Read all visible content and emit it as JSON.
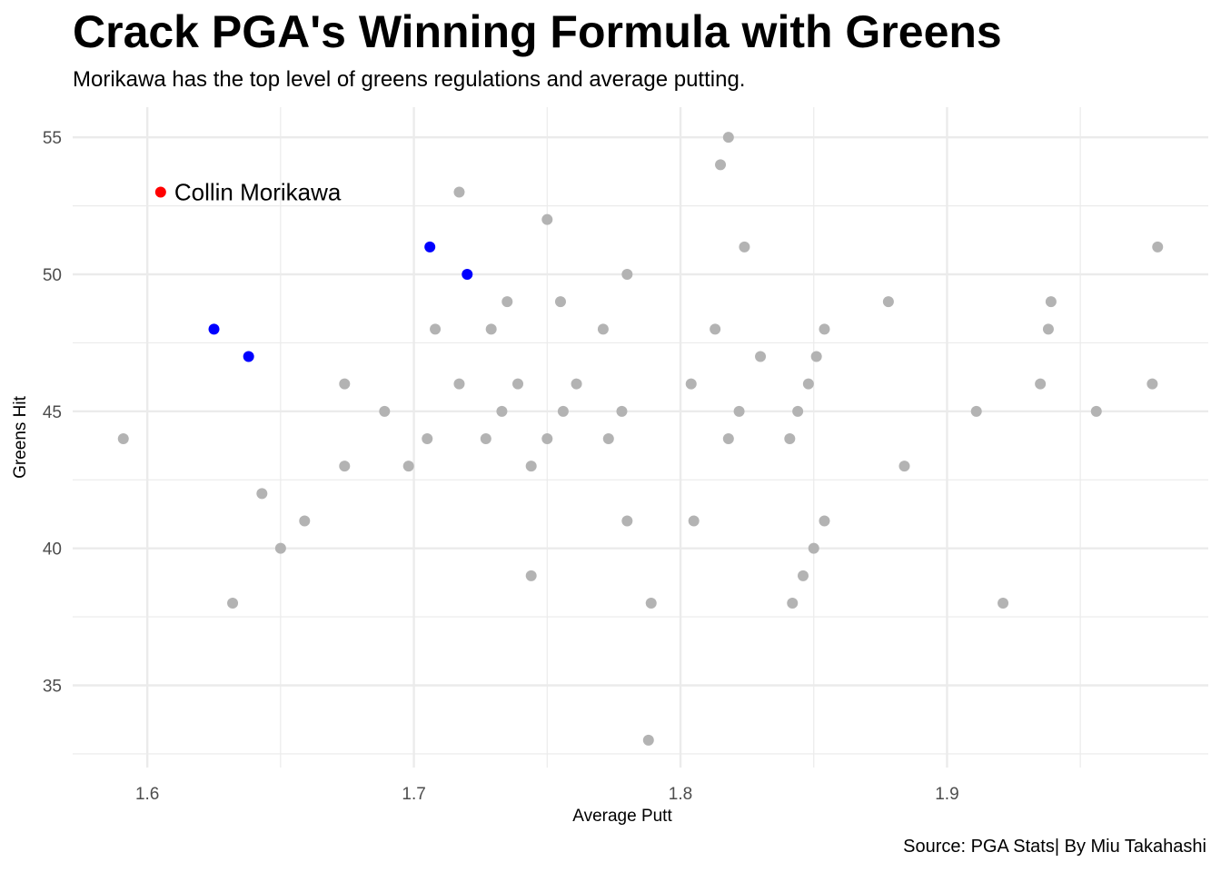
{
  "chart_data": {
    "type": "scatter",
    "title": "Crack PGA's Winning Formula with Greens",
    "subtitle": "Morikawa has the top level of greens regulations and average putting.",
    "caption": "Source: PGA Stats| By Miu Takahashi",
    "xlabel": "Average Putt",
    "ylabel": "Greens Hit",
    "xlim": [
      1.572,
      1.998
    ],
    "ylim": [
      32.0,
      56.1
    ],
    "x_ticks": [
      1.6,
      1.7,
      1.8,
      1.9
    ],
    "y_ticks": [
      35,
      40,
      45,
      50,
      55
    ],
    "x_tick_labels": [
      "1.6",
      "1.7",
      "1.8",
      "1.9"
    ],
    "y_tick_labels": [
      "35",
      "40",
      "45",
      "50",
      "55"
    ],
    "grid": true,
    "colors": {
      "highlight": "#ff0000",
      "top": "#0000ff",
      "other": "#b3b3b3",
      "grid": "#ebebeb"
    },
    "annotation": {
      "label": "Collin Morikawa",
      "x": 1.605,
      "y": 53
    },
    "series": [
      {
        "color_key": "highlight",
        "points": [
          [
            1.605,
            53
          ]
        ]
      },
      {
        "color_key": "top",
        "points": [
          [
            1.625,
            48
          ],
          [
            1.638,
            47
          ],
          [
            1.706,
            51
          ],
          [
            1.72,
            50
          ]
        ]
      },
      {
        "color_key": "other",
        "points": [
          [
            1.591,
            44
          ],
          [
            1.632,
            38
          ],
          [
            1.643,
            42
          ],
          [
            1.65,
            40
          ],
          [
            1.659,
            41
          ],
          [
            1.674,
            46
          ],
          [
            1.674,
            43
          ],
          [
            1.689,
            45
          ],
          [
            1.698,
            43
          ],
          [
            1.705,
            44
          ],
          [
            1.708,
            48
          ],
          [
            1.717,
            53
          ],
          [
            1.717,
            46
          ],
          [
            1.727,
            44
          ],
          [
            1.729,
            48
          ],
          [
            1.733,
            45
          ],
          [
            1.735,
            49
          ],
          [
            1.739,
            46
          ],
          [
            1.744,
            43
          ],
          [
            1.744,
            39
          ],
          [
            1.75,
            52
          ],
          [
            1.75,
            44
          ],
          [
            1.755,
            49
          ],
          [
            1.756,
            45
          ],
          [
            1.761,
            46
          ],
          [
            1.771,
            48
          ],
          [
            1.773,
            44
          ],
          [
            1.778,
            45
          ],
          [
            1.78,
            50
          ],
          [
            1.78,
            41
          ],
          [
            1.788,
            33
          ],
          [
            1.789,
            38
          ],
          [
            1.804,
            46
          ],
          [
            1.805,
            41
          ],
          [
            1.813,
            48
          ],
          [
            1.815,
            54
          ],
          [
            1.818,
            55
          ],
          [
            1.818,
            44
          ],
          [
            1.822,
            45
          ],
          [
            1.824,
            51
          ],
          [
            1.83,
            47
          ],
          [
            1.841,
            44
          ],
          [
            1.842,
            38
          ],
          [
            1.844,
            45
          ],
          [
            1.846,
            39
          ],
          [
            1.848,
            46
          ],
          [
            1.85,
            40
          ],
          [
            1.851,
            47
          ],
          [
            1.854,
            48
          ],
          [
            1.854,
            41
          ],
          [
            1.878,
            49
          ],
          [
            1.884,
            43
          ],
          [
            1.911,
            45
          ],
          [
            1.921,
            38
          ],
          [
            1.935,
            46
          ],
          [
            1.938,
            48
          ],
          [
            1.939,
            49
          ],
          [
            1.956,
            45
          ],
          [
            1.977,
            46
          ],
          [
            1.979,
            51
          ]
        ]
      }
    ]
  }
}
